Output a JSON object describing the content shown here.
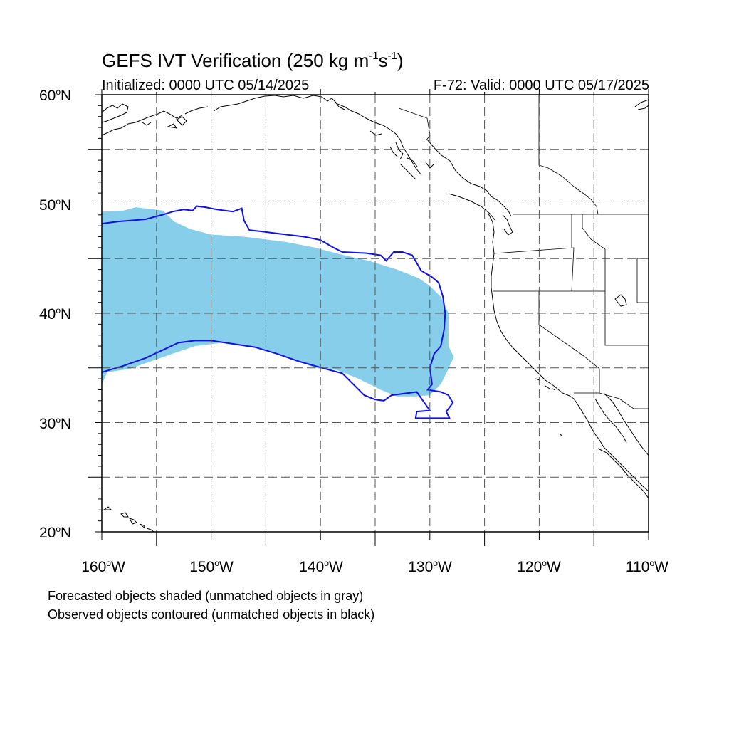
{
  "title": {
    "main": "GEFS IVT Verification (250 kg m",
    "exp1": "-1",
    "mid": "s",
    "exp2": "-1",
    "end": ")"
  },
  "subtitle": {
    "initialized": "Initialized: 0000 UTC 05/14/2025",
    "valid": "F-72: Valid: 0000 UTC 05/17/2025"
  },
  "axes": {
    "lon_range": [
      -160,
      -110
    ],
    "lat_range": [
      20,
      60
    ],
    "gridlines": "dashed",
    "lon_ticks": [
      {
        "value": -160,
        "label": "160",
        "suffix": "W"
      },
      {
        "value": -150,
        "label": "150",
        "suffix": "W"
      },
      {
        "value": -140,
        "label": "140",
        "suffix": "W"
      },
      {
        "value": -130,
        "label": "130",
        "suffix": "W"
      },
      {
        "value": -120,
        "label": "120",
        "suffix": "W"
      },
      {
        "value": -110,
        "label": "110",
        "suffix": "W"
      }
    ],
    "lat_ticks": [
      {
        "value": 60,
        "label": "60",
        "suffix": "N"
      },
      {
        "value": 50,
        "label": "50",
        "suffix": "N"
      },
      {
        "value": 40,
        "label": "40",
        "suffix": "N"
      },
      {
        "value": 30,
        "label": "30",
        "suffix": "N"
      },
      {
        "value": 20,
        "label": "20",
        "suffix": "N"
      }
    ],
    "degree_symbol": "o"
  },
  "notes": {
    "forecast": "Forecasted objects shaded (unmatched objects in gray)",
    "observed": "Observed objects contoured (unmatched objects in black)"
  },
  "colors": {
    "forecast_fill": "#87ceeb",
    "observed_contour": "#1010e8",
    "coastline": "#000000",
    "grid": "#555555"
  },
  "map_features": {
    "forecast_object": {
      "style": "filled",
      "color": "forecast_fill",
      "outline": [
        [
          -160,
          49.3
        ],
        [
          -158,
          49.4
        ],
        [
          -156.9,
          49.7
        ],
        [
          -154.4,
          49.4
        ],
        [
          -153.4,
          48.4
        ],
        [
          -151.9,
          47.7
        ],
        [
          -150.0,
          47.2
        ],
        [
          -147.0,
          47.0
        ],
        [
          -143.0,
          46.5
        ],
        [
          -140.5,
          46.0
        ],
        [
          -138.6,
          45.5
        ],
        [
          -136.5,
          45.0
        ],
        [
          -135.6,
          44.8
        ],
        [
          -133.0,
          44.0
        ],
        [
          -131.0,
          43.2
        ],
        [
          -130.0,
          42.5
        ],
        [
          -129.0,
          41.5
        ],
        [
          -128.3,
          40.0
        ],
        [
          -128.3,
          37.0
        ],
        [
          -127.8,
          36.0
        ],
        [
          -128.5,
          34.5
        ],
        [
          -129.0,
          33.5
        ],
        [
          -130.0,
          32.5
        ],
        [
          -131.5,
          32.4
        ],
        [
          -133.0,
          32.4
        ],
        [
          -134.5,
          33.0
        ],
        [
          -136.5,
          34.0
        ],
        [
          -138.5,
          34.8
        ],
        [
          -140.5,
          35.0
        ],
        [
          -142.5,
          35.8
        ],
        [
          -144.5,
          36.4
        ],
        [
          -146.5,
          37.0
        ],
        [
          -149.0,
          37.3
        ],
        [
          -151.5,
          37.0
        ],
        [
          -153.5,
          36.3
        ],
        [
          -155.5,
          35.6
        ],
        [
          -157.5,
          34.9
        ],
        [
          -159.5,
          34.6
        ],
        [
          -160,
          33.5
        ]
      ]
    },
    "observed_object": {
      "style": "contour",
      "color": "observed_contour",
      "outline": [
        [
          -160,
          48.2
        ],
        [
          -158.5,
          48.4
        ],
        [
          -156.0,
          48.6
        ],
        [
          -154.5,
          49.0
        ],
        [
          -153.5,
          49.3
        ],
        [
          -152.5,
          49.5
        ],
        [
          -151.7,
          49.4
        ],
        [
          -151.3,
          49.8
        ],
        [
          -150.5,
          49.7
        ],
        [
          -149.5,
          49.5
        ],
        [
          -148.0,
          49.3
        ],
        [
          -147.2,
          49.6
        ],
        [
          -147.0,
          48.5
        ],
        [
          -146.5,
          47.6
        ],
        [
          -145.5,
          47.5
        ],
        [
          -144.0,
          47.3
        ],
        [
          -141.5,
          47.0
        ],
        [
          -140.0,
          46.7
        ],
        [
          -138.8,
          46.0
        ],
        [
          -138.0,
          45.6
        ],
        [
          -135.8,
          45.5
        ],
        [
          -134.5,
          45.3
        ],
        [
          -134.0,
          44.8
        ],
        [
          -133.3,
          45.6
        ],
        [
          -132.5,
          45.6
        ],
        [
          -131.6,
          45.3
        ],
        [
          -131.2,
          44.6
        ],
        [
          -130.8,
          43.9
        ],
        [
          -130.3,
          43.6
        ],
        [
          -129.8,
          43.3
        ],
        [
          -129.2,
          42.8
        ],
        [
          -128.8,
          41.5
        ],
        [
          -128.6,
          40.0
        ],
        [
          -128.7,
          38.5
        ],
        [
          -129.0,
          37.0
        ],
        [
          -129.6,
          36.3
        ],
        [
          -130.0,
          35.0
        ],
        [
          -129.8,
          33.5
        ],
        [
          -130.2,
          33.0
        ],
        [
          -129.0,
          32.8
        ],
        [
          -128.3,
          32.5
        ],
        [
          -127.9,
          31.8
        ],
        [
          -128.5,
          31.0
        ],
        [
          -128.2,
          30.4
        ],
        [
          -130.0,
          30.4
        ],
        [
          -131.3,
          30.4
        ],
        [
          -131.2,
          31.0
        ],
        [
          -130.0,
          31.1
        ],
        [
          -131.2,
          32.8
        ],
        [
          -133.5,
          32.5
        ],
        [
          -134.2,
          32.0
        ],
        [
          -135.0,
          32.1
        ],
        [
          -136.0,
          32.5
        ],
        [
          -137.0,
          33.5
        ],
        [
          -138.0,
          34.5
        ],
        [
          -139.5,
          34.9
        ],
        [
          -142.0,
          35.6
        ],
        [
          -144.0,
          36.3
        ],
        [
          -146.0,
          36.9
        ],
        [
          -148.0,
          37.2
        ],
        [
          -150.0,
          37.5
        ],
        [
          -151.5,
          37.5
        ],
        [
          -153.0,
          37.3
        ],
        [
          -154.5,
          36.6
        ],
        [
          -156.0,
          35.9
        ],
        [
          -158.0,
          35.2
        ],
        [
          -160,
          34.6
        ]
      ]
    }
  }
}
